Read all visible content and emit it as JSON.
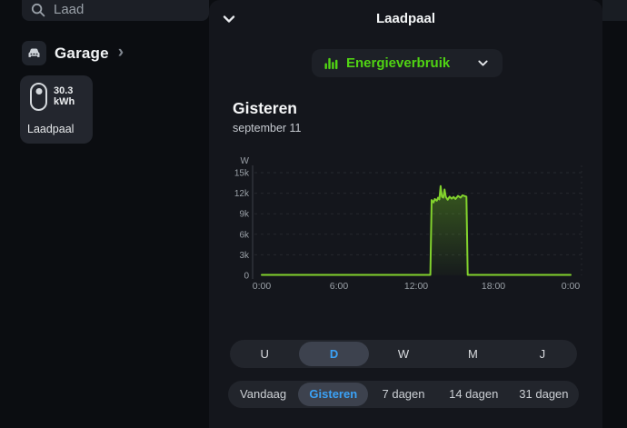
{
  "sidebar": {
    "search": {
      "value": "Laad"
    },
    "group": {
      "label": "Garage",
      "chevron": "›"
    },
    "device_card": {
      "value": "30.3 kWh",
      "name": "Laadpaal"
    }
  },
  "modal": {
    "title": "Laadpaal",
    "metric_selector": {
      "label": "Energieverbruik",
      "accent": "#50d313"
    },
    "heading": "Gisteren",
    "subheading": "september 11",
    "period_tabs": {
      "items": [
        "U",
        "D",
        "W",
        "M",
        "J"
      ],
      "selected": "D"
    },
    "range_tabs": {
      "items": [
        "Vandaag",
        "Gisteren",
        "7 dagen",
        "14 dagen",
        "31 dagen"
      ],
      "selected": "Gisteren"
    },
    "selected_color": "#3ba2f7"
  },
  "chart_data": {
    "type": "area",
    "title": "Gisteren",
    "subtitle": "september 11",
    "unit": "W",
    "yticks": [
      "15k",
      "12k",
      "9k",
      "6k",
      "3k",
      "0"
    ],
    "ytick_values": [
      15000,
      12000,
      9000,
      6000,
      3000,
      0
    ],
    "ylim": [
      0,
      15000
    ],
    "xticks": [
      "0:00",
      "6:00",
      "12:00",
      "18:00",
      "0:00"
    ],
    "xtick_hours": [
      0,
      6,
      12,
      18,
      24
    ],
    "grid": "dashed horizontal",
    "legend": "none",
    "line_color": "#82d22d",
    "fill_color": "#6fc024",
    "points": [
      [
        0,
        60
      ],
      [
        13.1,
        60
      ],
      [
        13.2,
        11000
      ],
      [
        13.35,
        10650
      ],
      [
        13.45,
        11150
      ],
      [
        13.6,
        10900
      ],
      [
        13.7,
        11350
      ],
      [
        13.8,
        11100
      ],
      [
        13.9,
        13050
      ],
      [
        14.0,
        11500
      ],
      [
        14.1,
        11350
      ],
      [
        14.2,
        12550
      ],
      [
        14.3,
        11450
      ],
      [
        14.45,
        11050
      ],
      [
        14.6,
        11500
      ],
      [
        14.75,
        11200
      ],
      [
        14.9,
        11450
      ],
      [
        15.05,
        11150
      ],
      [
        15.25,
        11600
      ],
      [
        15.45,
        11350
      ],
      [
        15.6,
        11700
      ],
      [
        15.9,
        11500
      ],
      [
        16.0,
        60
      ],
      [
        24,
        60
      ]
    ]
  }
}
